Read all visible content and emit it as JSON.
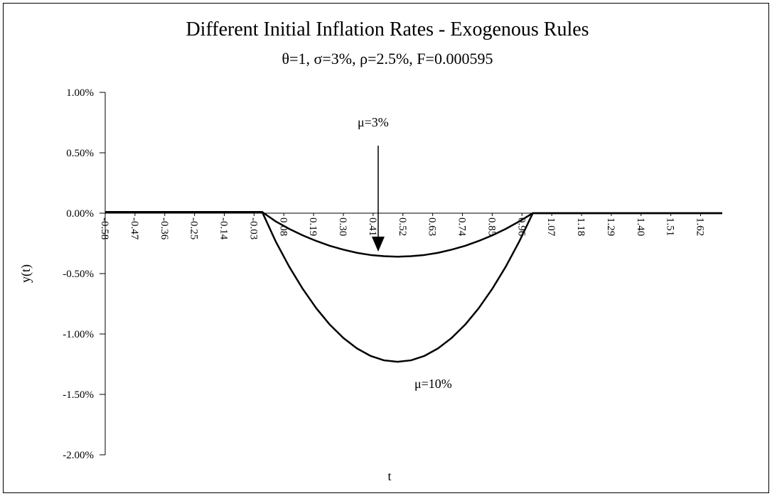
{
  "chart_data": {
    "type": "line",
    "title": "Different Initial Inflation Rates - Exogenous Rules",
    "subtitle": "θ=1, σ=3%, ρ=2.5%, F=0.000595",
    "x_label": "t",
    "y_label": "y(t)",
    "annotations": [
      "μ=3%",
      "μ=10%"
    ],
    "x": [
      -0.58,
      0,
      0.05,
      0.1,
      0.15,
      0.2,
      0.25,
      0.3,
      0.35,
      0.4,
      0.45,
      0.5,
      0.55,
      0.6,
      0.65,
      0.7,
      0.75,
      0.8,
      0.85,
      0.9,
      0.95,
      1.0,
      1.7
    ],
    "series": [
      {
        "name": "μ=3%",
        "color": "#000000",
        "values": [
          0.01,
          0.01,
          -0.068,
          -0.13,
          -0.184,
          -0.23,
          -0.27,
          -0.302,
          -0.328,
          -0.346,
          -0.356,
          -0.36,
          -0.356,
          -0.346,
          -0.328,
          -0.302,
          -0.27,
          -0.23,
          -0.184,
          -0.13,
          -0.068,
          0,
          0
        ]
      },
      {
        "name": "μ=10%",
        "color": "#000000",
        "values": [
          0.01,
          0.01,
          -0.234,
          -0.443,
          -0.627,
          -0.787,
          -0.923,
          -1.033,
          -1.119,
          -1.181,
          -1.218,
          -1.23,
          -1.218,
          -1.181,
          -1.119,
          -1.033,
          -0.923,
          -0.787,
          -0.627,
          -0.443,
          -0.234,
          0,
          0
        ]
      }
    ],
    "xlim": [
      -0.58,
      1.7
    ],
    "xticks": [
      -0.58,
      -0.47,
      -0.36,
      -0.25,
      -0.14,
      -0.03,
      0.08,
      0.19,
      {
        "value": 0.3,
        "label": "0.30"
      },
      0.41,
      0.52,
      0.63,
      0.74,
      0.85,
      0.96,
      1.07,
      1.18,
      1.29,
      {
        "value": 1.4,
        "label": "1.40"
      },
      1.51,
      1.62
    ],
    "ylim": [
      -2,
      1
    ],
    "yticks": [
      {
        "value": 1,
        "label": "1.00%"
      },
      {
        "value": 0.5,
        "label": "0.50%"
      },
      {
        "value": 0,
        "label": "0.00%"
      },
      {
        "value": -0.5,
        "label": "-0.50%"
      },
      {
        "value": -1,
        "label": "-1.00%"
      },
      {
        "value": -1.5,
        "label": "-1.50%"
      },
      {
        "value": -2,
        "label": "-2.00%"
      }
    ],
    "grid": false
  }
}
